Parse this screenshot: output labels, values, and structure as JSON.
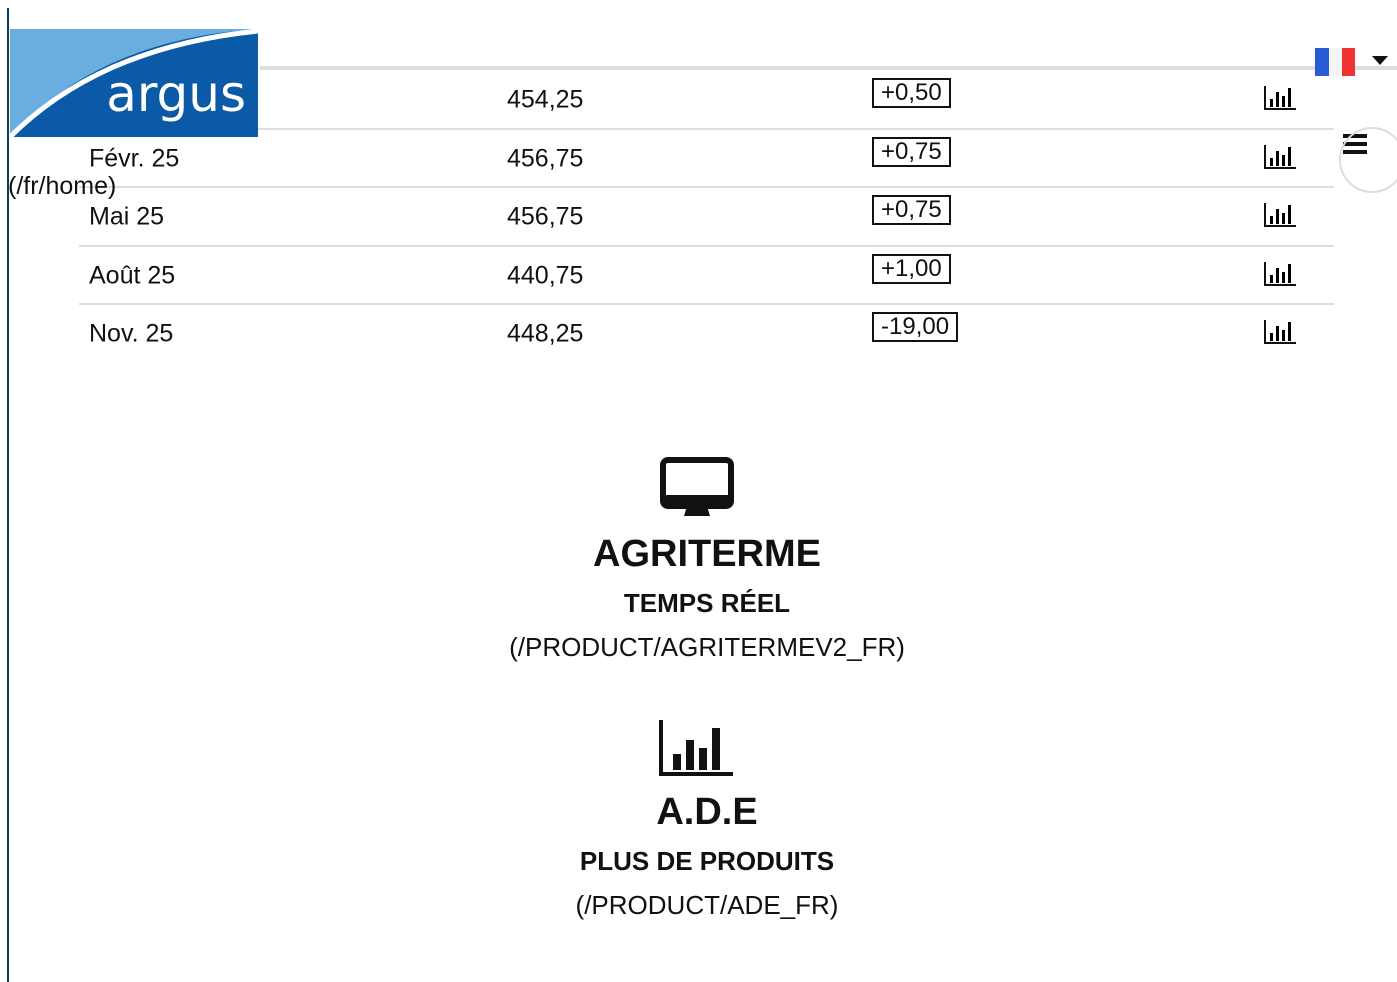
{
  "header": {
    "logo": "argus",
    "home_link": "(/fr/home)"
  },
  "table": {
    "rows": [
      {
        "price": "454,25",
        "change": "+0,50"
      },
      {
        "month": "Févr. 25",
        "price": "456,75",
        "change": "+0,75"
      },
      {
        "month": "Mai 25",
        "price": "456,75",
        "change": "+0,75"
      },
      {
        "month": "Août 25",
        "price": "440,75",
        "change": "+1,00"
      },
      {
        "month": "Nov. 25",
        "price": "448,25",
        "change": "-19,00"
      }
    ]
  },
  "products": [
    {
      "title": "AGRITERME",
      "subtitle": "TEMPS RÉEL",
      "link": "(/PRODUCT/AGRITERMEV2_FR)"
    },
    {
      "title": "A.D.E",
      "subtitle": "PLUS DE PRODUITS",
      "link": "(/PRODUCT/ADE_FR)"
    }
  ]
}
